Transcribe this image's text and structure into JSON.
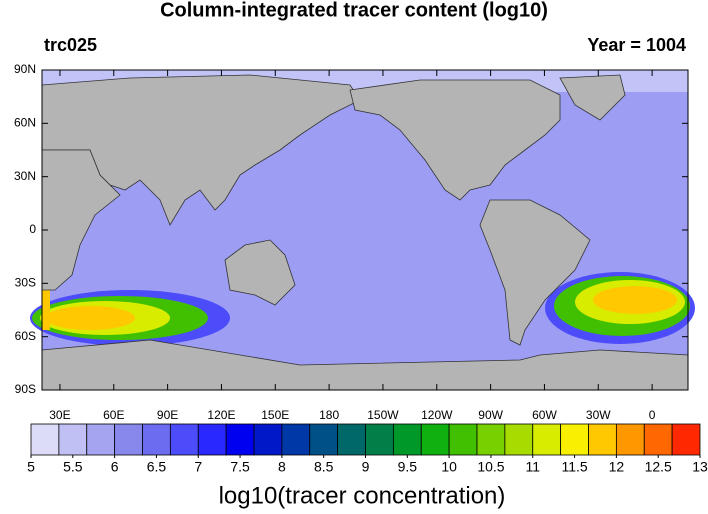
{
  "map": {
    "title": "Column-integrated tracer content (log10)",
    "left_label": "trc025",
    "right_label": "Year = 1004",
    "lat_labels": [
      "90N",
      "60N",
      "30N",
      "0",
      "30S",
      "60S",
      "90S"
    ],
    "lon_labels": [
      "30E",
      "60E",
      "90E",
      "120E",
      "150E",
      "180",
      "150W",
      "120W",
      "90W",
      "60W",
      "30W",
      "0"
    ],
    "colorbar": {
      "min": 5,
      "max": 13,
      "ticks": [
        5,
        5.5,
        6,
        6.5,
        7,
        7.5,
        8,
        8.5,
        9,
        9.5,
        10,
        10.5,
        11,
        11.5,
        12,
        12.5,
        13
      ],
      "colors": [
        "#dcdcf8",
        "#c0c0f5",
        "#a4a4f0",
        "#8888ec",
        "#6c6cf0",
        "#4c4cfa",
        "#2828ff",
        "#0000f0",
        "#0018c8",
        "#0038a8",
        "#005088",
        "#006868",
        "#008048",
        "#009828",
        "#10b010",
        "#40c000",
        "#78d000",
        "#a8dc00",
        "#d8ec00",
        "#f8f000",
        "#ffc800",
        "#ff9800",
        "#ff6800",
        "#ff2800"
      ],
      "label": "log10(tracer concentration)"
    }
  }
}
